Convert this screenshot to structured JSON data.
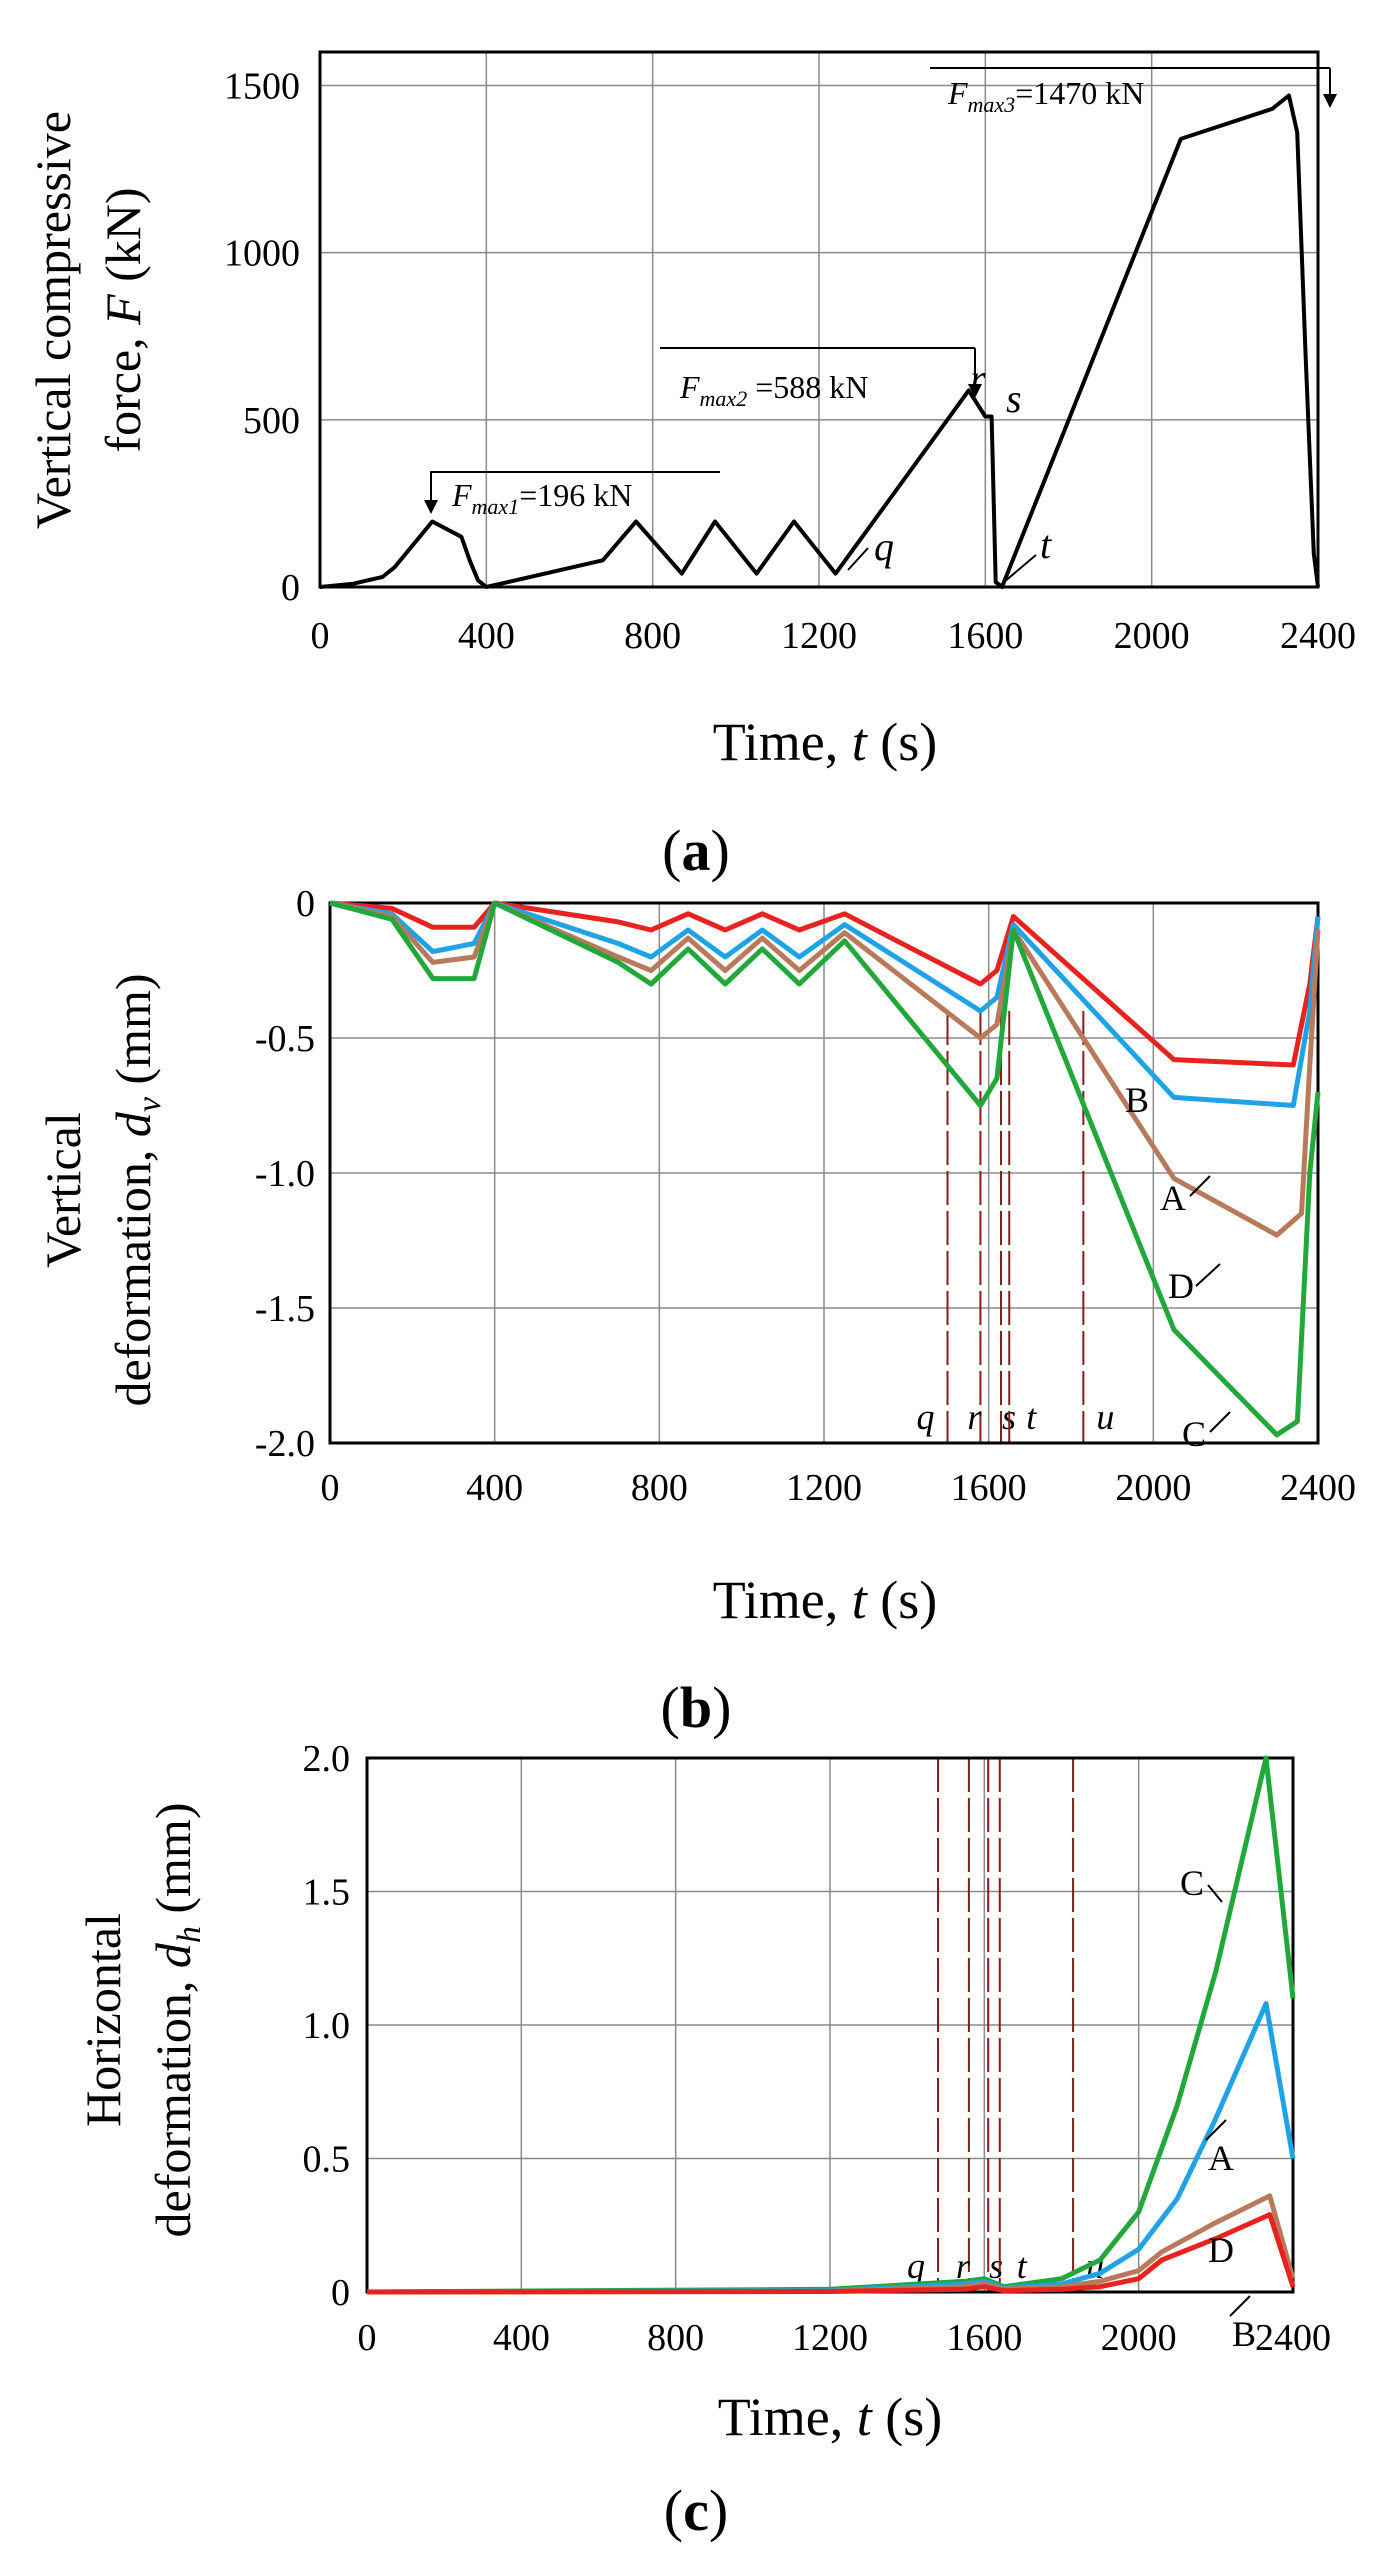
{
  "chart_data": [
    {
      "id": "a",
      "type": "line",
      "panel_open": "(",
      "panel_letter": "a",
      "panel_close": ")",
      "ylabel_line1": "Vertical compressive",
      "ylabel_line2": "force, F (kN)",
      "xlabel": "Time, t (s)",
      "xlim": [
        0,
        2400
      ],
      "ylim": [
        0,
        1600
      ],
      "xticks": [
        0,
        400,
        800,
        1200,
        1600,
        2000,
        2400
      ],
      "xtick_labels": [
        "0",
        "400",
        "800",
        "1200",
        "1600",
        "2000",
        "2400"
      ],
      "yticks": [
        0,
        500,
        1000,
        1500
      ],
      "ytick_labels": [
        "0",
        "500",
        "1000",
        "1500"
      ],
      "grid": true,
      "series": [
        {
          "name": "F",
          "color": "#000000",
          "x": [
            0,
            80,
            150,
            180,
            270,
            340,
            360,
            380,
            400,
            680,
            760,
            870,
            950,
            1050,
            1140,
            1240,
            1560,
            1600,
            1615,
            1625,
            1640,
            2070,
            2290,
            2330,
            2350,
            2370,
            2390,
            2400
          ],
          "y": [
            0,
            10,
            30,
            60,
            196,
            150,
            80,
            20,
            0,
            80,
            196,
            40,
            196,
            40,
            196,
            40,
            588,
            510,
            510,
            15,
            0,
            1340,
            1430,
            1470,
            1360,
            700,
            100,
            0
          ]
        }
      ],
      "annotations": [
        {
          "text": "F",
          "sub": "max1",
          "rest": "=196 kN"
        },
        {
          "text": "F",
          "sub": "max2",
          "rest": " =588 kN"
        },
        {
          "text": "F",
          "sub": "max3",
          "rest": "=1470 kN"
        }
      ],
      "point_labels": [
        "q",
        "r",
        "s",
        "t"
      ]
    },
    {
      "id": "b",
      "type": "line",
      "panel_open": "(",
      "panel_letter": "b",
      "panel_close": ")",
      "ylabel_line1": "Vertical",
      "ylabel_line2": "deformation, dv (mm)",
      "xlabel": "Time, t (s)",
      "xlim": [
        0,
        2400
      ],
      "ylim": [
        -2.0,
        0.0
      ],
      "xticks": [
        0,
        400,
        800,
        1200,
        1600,
        2000,
        2400
      ],
      "xtick_labels": [
        "0",
        "400",
        "800",
        "1200",
        "1600",
        "2000",
        "2400"
      ],
      "yticks": [
        0,
        -0.5,
        -1.0,
        -1.5,
        -2.0
      ],
      "ytick_labels": [
        "0",
        "-0.5",
        "-1.0",
        "-1.5",
        "-2.0"
      ],
      "grid": true,
      "series": [
        {
          "name": "B",
          "color": "#e8231f",
          "x": [
            0,
            150,
            250,
            350,
            400,
            700,
            780,
            870,
            960,
            1050,
            1140,
            1250,
            1580,
            1620,
            1660,
            2050,
            2340,
            2380,
            2400
          ],
          "y": [
            0,
            -0.02,
            -0.09,
            -0.09,
            0,
            -0.07,
            -0.1,
            -0.04,
            -0.1,
            -0.04,
            -0.1,
            -0.04,
            -0.3,
            -0.25,
            -0.05,
            -0.58,
            -0.6,
            -0.3,
            -0.05
          ]
        },
        {
          "name": "A",
          "color": "#1fa3e6",
          "x": [
            0,
            150,
            250,
            350,
            400,
            700,
            780,
            870,
            960,
            1050,
            1140,
            1250,
            1580,
            1620,
            1660,
            2050,
            2340,
            2380,
            2400
          ],
          "y": [
            0,
            -0.04,
            -0.18,
            -0.15,
            0,
            -0.15,
            -0.2,
            -0.1,
            -0.2,
            -0.1,
            -0.2,
            -0.08,
            -0.4,
            -0.35,
            -0.08,
            -0.72,
            -0.75,
            -0.4,
            -0.05
          ]
        },
        {
          "name": "D",
          "color": "#b87a5a",
          "x": [
            0,
            150,
            250,
            350,
            400,
            700,
            780,
            870,
            960,
            1050,
            1140,
            1250,
            1580,
            1620,
            1660,
            2050,
            2300,
            2360,
            2380,
            2400
          ],
          "y": [
            0,
            -0.05,
            -0.22,
            -0.2,
            0,
            -0.2,
            -0.25,
            -0.13,
            -0.25,
            -0.13,
            -0.25,
            -0.11,
            -0.5,
            -0.45,
            -0.1,
            -1.02,
            -1.23,
            -1.15,
            -0.6,
            -0.1
          ]
        },
        {
          "name": "C",
          "color": "#22a83a",
          "x": [
            0,
            150,
            250,
            350,
            400,
            700,
            780,
            870,
            960,
            1050,
            1140,
            1250,
            1580,
            1620,
            1660,
            2050,
            2300,
            2350,
            2380,
            2400
          ],
          "y": [
            0,
            -0.06,
            -0.28,
            -0.28,
            0,
            -0.22,
            -0.3,
            -0.17,
            -0.3,
            -0.17,
            -0.3,
            -0.14,
            -0.75,
            -0.65,
            -0.1,
            -1.58,
            -1.97,
            -1.92,
            -1.0,
            -0.7
          ]
        }
      ],
      "markers_x": [
        1500,
        1580,
        1630,
        1650,
        1830
      ],
      "marker_labels": [
        "q",
        "r",
        "s",
        "t",
        "u"
      ],
      "curve_labels": [
        "B",
        "A",
        "D",
        "C"
      ]
    },
    {
      "id": "c",
      "type": "line",
      "panel_open": "(",
      "panel_letter": "c",
      "panel_close": ")",
      "ylabel_line1": "Horizontal",
      "ylabel_line2": "deformation, dh (mm)",
      "xlabel": "Time, t (s)",
      "xlim": [
        0,
        2400
      ],
      "ylim": [
        0,
        2.0
      ],
      "xticks": [
        0,
        400,
        800,
        1200,
        1600,
        2000,
        2400
      ],
      "xtick_labels": [
        "0",
        "400",
        "800",
        "1200",
        "1600",
        "2000",
        "2400"
      ],
      "yticks": [
        0,
        0.5,
        1.0,
        1.5,
        2.0
      ],
      "ytick_labels": [
        "0",
        "0.5",
        "1.0",
        "1.5",
        "2.0"
      ],
      "grid": true,
      "series": [
        {
          "name": "C",
          "color": "#22a83a",
          "x": [
            0,
            1200,
            1550,
            1600,
            1650,
            1800,
            1900,
            2000,
            2100,
            2200,
            2330,
            2400
          ],
          "y": [
            0,
            0.01,
            0.04,
            0.05,
            0.02,
            0.05,
            0.12,
            0.3,
            0.7,
            1.2,
            2.0,
            1.1
          ]
        },
        {
          "name": "A",
          "color": "#1fa3e6",
          "x": [
            0,
            1200,
            1550,
            1600,
            1650,
            1800,
            1900,
            2000,
            2100,
            2200,
            2330,
            2400
          ],
          "y": [
            0,
            0.005,
            0.03,
            0.04,
            0.015,
            0.03,
            0.07,
            0.16,
            0.35,
            0.65,
            1.08,
            0.5
          ]
        },
        {
          "name": "D",
          "color": "#b87a5a",
          "x": [
            0,
            1200,
            1550,
            1600,
            1650,
            1800,
            1900,
            2000,
            2060,
            2200,
            2340,
            2400
          ],
          "y": [
            0,
            0.003,
            0.02,
            0.03,
            0.01,
            0.02,
            0.04,
            0.08,
            0.15,
            0.26,
            0.36,
            0.05
          ]
        },
        {
          "name": "B",
          "color": "#e8231f",
          "x": [
            0,
            1200,
            1550,
            1600,
            1650,
            1800,
            1900,
            2000,
            2060,
            2200,
            2340,
            2400
          ],
          "y": [
            0,
            0.002,
            0.01,
            0.02,
            0.005,
            0.01,
            0.02,
            0.05,
            0.12,
            0.2,
            0.29,
            0.02
          ]
        }
      ],
      "markers_x": [
        1480,
        1560,
        1610,
        1640,
        1830
      ],
      "marker_labels": [
        "q",
        "r",
        "s",
        "t",
        "u"
      ],
      "curve_labels": [
        "C",
        "A",
        "D",
        "B"
      ]
    }
  ]
}
